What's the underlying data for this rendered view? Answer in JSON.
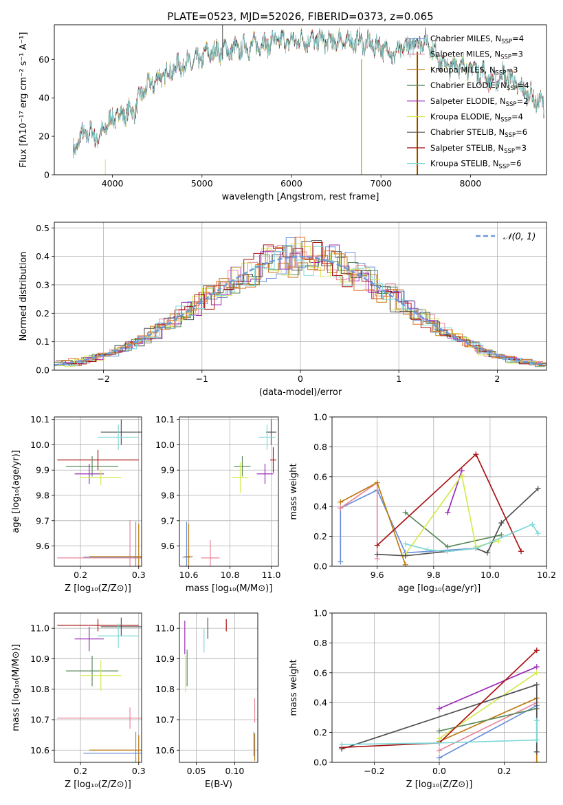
{
  "figure_title": "PLATE=0523, MJD=52026, FIBERID=0373, z=0.065",
  "colors": {
    "Chabrier MILES": "#6a8fd8",
    "Salpeter MILES": "#e8869a",
    "Kroupa MILES": "#c07a10",
    "Chabrier ELODIE": "#5a8a5a",
    "Salpeter ELODIE": "#9a2ab8",
    "Kroupa ELODIE": "#d6e84e",
    "Chabrier STELIB": "#505050",
    "Salpeter STELIB": "#aa1111",
    "Kroupa STELIB": "#7fd8d8",
    "hist_orange": "#e07020",
    "normal_curve": "#6a9ad8"
  },
  "chart_data": [
    {
      "id": "spectrum",
      "type": "line",
      "xlabel": "wavelength [Angstrom, rest frame]",
      "ylabel": "Flux [fλ10⁻¹⁷ erg cm⁻² s⁻¹ A⁻¹]",
      "xlim": [
        3350,
        8850
      ],
      "ylim": [
        0,
        78
      ],
      "xticks": [
        4000,
        5000,
        6000,
        7000,
        8000
      ],
      "yticks": [
        0,
        20,
        40,
        60
      ],
      "legend_position": "right",
      "legend": [
        {
          "name": "Chabrier MILES, N_SSP=4",
          "base": "Chabrier MILES, N",
          "sub": "SSP",
          "tail": "=4"
        },
        {
          "name": "Salpeter MILES, N_SSP=3",
          "base": "Salpeter MILES, N",
          "sub": "SSP",
          "tail": "=3"
        },
        {
          "name": "Kroupa MILES, N_SSP=3",
          "base": "Kroupa MILES, N",
          "sub": "SSP",
          "tail": "=3"
        },
        {
          "name": "Chabrier ELODIE, N_SSP=4",
          "base": "Chabrier ELODIE, N",
          "sub": "SSP",
          "tail": "=4"
        },
        {
          "name": "Salpeter ELODIE, N_SSP=2",
          "base": "Salpeter ELODIE, N",
          "sub": "SSP",
          "tail": "=2"
        },
        {
          "name": "Kroupa ELODIE, N_SSP=4",
          "base": "Kroupa ELODIE, N",
          "sub": "SSP",
          "tail": "=4"
        },
        {
          "name": "Chabrier STELIB, N_SSP=6",
          "base": "Chabrier STELIB, N",
          "sub": "SSP",
          "tail": "=6"
        },
        {
          "name": "Salpeter STELIB, N_SSP=3",
          "base": "Salpeter STELIB, N",
          "sub": "SSP",
          "tail": "=3"
        },
        {
          "name": "Kroupa STELIB, N_SSP=6",
          "base": "Kroupa STELIB, N",
          "sub": "SSP",
          "tail": "=6"
        }
      ],
      "envelope": {
        "x": [
          3560,
          3650,
          3750,
          3850,
          3950,
          4050,
          4150,
          4250,
          4350,
          4450,
          4550,
          4650,
          4750,
          4850,
          4950,
          5050,
          5150,
          5250,
          5350,
          5450,
          5550,
          5650,
          5750,
          5850,
          5950,
          6050,
          6150,
          6250,
          6350,
          6450,
          6550,
          6650,
          6750,
          6850,
          6950,
          7050,
          7150,
          7250,
          7350,
          7450,
          7550,
          7650,
          7750,
          7850,
          7950,
          8050,
          8150,
          8250,
          8350,
          8450,
          8550,
          8650,
          8750,
          8820
        ],
        "y": [
          12,
          20,
          22,
          19,
          27,
          31,
          32,
          34,
          44,
          48,
          51,
          54,
          57,
          58,
          59,
          63,
          64,
          65,
          65,
          66,
          67,
          68,
          68,
          70,
          69,
          70,
          70,
          70,
          70,
          69,
          70,
          69,
          70,
          68,
          67,
          66,
          62,
          66,
          68,
          70,
          68,
          60,
          56,
          58,
          56,
          55,
          53,
          48,
          52,
          50,
          45,
          42,
          38,
          36
        ]
      },
      "vertical_spikes": [
        {
          "series": "Kroupa ELODIE",
          "x": 3920,
          "y0": 0,
          "y1": 8
        },
        {
          "series": "Chabrier STELIB",
          "x": 5230,
          "y0": 60,
          "y1": 78
        },
        {
          "series": "Kroupa MILES",
          "x": 6780,
          "y0": 0,
          "y1": 60
        },
        {
          "series": "Kroupa ELODIE",
          "x": 6785,
          "y0": 0,
          "y1": 60
        },
        {
          "series": "Kroupa MILES",
          "x": 7400,
          "y0": 0,
          "y1": 64
        },
        {
          "series": "Salpeter STELIB",
          "x": 7410,
          "y0": 0,
          "y1": 64
        }
      ]
    },
    {
      "id": "residual-histogram",
      "type": "histogram",
      "xlabel": "(data-model)/error",
      "ylabel": "Normed distribution",
      "xlim": [
        -2.5,
        2.5
      ],
      "ylim": [
        0,
        0.52
      ],
      "xticks": [
        -2,
        -1,
        0,
        1,
        2
      ],
      "yticks": [
        0.0,
        0.1,
        0.2,
        0.3,
        0.4,
        0.5
      ],
      "grid": true,
      "bin_width": 0.1,
      "bin_start": -2.5,
      "legend_position": "top-right",
      "legend_label": "𝒩(0, 1)",
      "normal_curve": {
        "mean": 0,
        "sigma": 1
      },
      "series_names": [
        "Chabrier MILES",
        "Salpeter MILES",
        "Kroupa MILES",
        "Chabrier ELODIE",
        "Salpeter ELODIE",
        "Kroupa ELODIE",
        "Chabrier STELIB",
        "Salpeter STELIB",
        "Kroupa STELIB"
      ]
    },
    {
      "id": "z-age",
      "type": "errorbar",
      "xlabel": "Z [log₁₀(Z/Z⊙)]",
      "ylabel": "age  [log₁₀(age/yr)]",
      "xlim": [
        0.155,
        0.305
      ],
      "ylim": [
        9.52,
        10.11
      ],
      "xticks": [
        0.2,
        0.3
      ],
      "yticks": [
        9.6,
        9.7,
        9.8,
        9.9,
        10.0,
        10.1
      ],
      "grid": true,
      "points": [
        {
          "series": "Chabrier STELIB",
          "x": 0.27,
          "xerr": 0.035,
          "y": 10.05,
          "yerr": 0.05
        },
        {
          "series": "Kroupa STELIB",
          "x": 0.265,
          "xerr": 0.035,
          "y": 10.03,
          "yerr": 0.05
        },
        {
          "series": "Salpeter STELIB",
          "x": 0.23,
          "xerr": 0.07,
          "y": 9.94,
          "yerr": 0.04
        },
        {
          "series": "Chabrier ELODIE",
          "x": 0.22,
          "xerr": 0.045,
          "y": 9.915,
          "yerr": 0.04
        },
        {
          "series": "Salpeter ELODIE",
          "x": 0.215,
          "xerr": 0.025,
          "y": 9.885,
          "yerr": 0.04
        },
        {
          "series": "Kroupa ELODIE",
          "x": 0.235,
          "xerr": 0.035,
          "y": 9.87,
          "yerr": 0.03
        },
        {
          "series": "Salpeter MILES",
          "x": 0.285,
          "xerr": 0.125,
          "y": 9.553,
          "yerr": 0.15
        },
        {
          "series": "Chabrier MILES",
          "x": 0.295,
          "xerr": 0.09,
          "y": 9.556,
          "yerr": 0.14
        },
        {
          "series": "Kroupa MILES",
          "x": 0.3,
          "xerr": 0.085,
          "y": 9.558,
          "yerr": 0.13
        }
      ]
    },
    {
      "id": "mass-age",
      "type": "errorbar",
      "xlabel": "mass [log₁₀(M/M⊙)]",
      "ylabel": "",
      "xlim": [
        10.555,
        11.035
      ],
      "ylim": [
        9.52,
        10.11
      ],
      "xticks": [
        10.6,
        10.8,
        11.0
      ],
      "yticks": [
        9.6,
        9.7,
        9.8,
        9.9,
        10.0,
        10.1
      ],
      "grid": true,
      "points": [
        {
          "series": "Chabrier STELIB",
          "x": 11.0,
          "xerr": 0.025,
          "y": 10.05,
          "yerr": 0.05
        },
        {
          "series": "Kroupa STELIB",
          "x": 10.98,
          "xerr": 0.04,
          "y": 10.03,
          "yerr": 0.05
        },
        {
          "series": "Salpeter STELIB",
          "x": 11.01,
          "xerr": 0.015,
          "y": 9.94,
          "yerr": 0.05
        },
        {
          "series": "Chabrier ELODIE",
          "x": 10.86,
          "xerr": 0.04,
          "y": 9.915,
          "yerr": 0.04
        },
        {
          "series": "Salpeter ELODIE",
          "x": 10.97,
          "xerr": 0.04,
          "y": 9.885,
          "yerr": 0.04
        },
        {
          "series": "Kroupa ELODIE",
          "x": 10.85,
          "xerr": 0.04,
          "y": 9.87,
          "yerr": 0.06
        },
        {
          "series": "Salpeter MILES",
          "x": 10.705,
          "xerr": 0.045,
          "y": 9.553,
          "yerr": 0.07
        },
        {
          "series": "Chabrier MILES",
          "x": 10.59,
          "xerr": 0.02,
          "y": 9.556,
          "yerr": 0.14
        },
        {
          "series": "Kroupa MILES",
          "x": 10.6,
          "xerr": 0.02,
          "y": 9.558,
          "yerr": 0.13
        }
      ]
    },
    {
      "id": "age-massweight",
      "type": "line",
      "xlabel": "age  [log₁₀(age/yr)]",
      "ylabel": "mass weight",
      "xlim": [
        9.44,
        10.2
      ],
      "ylim": [
        0.0,
        1.0
      ],
      "xticks": [
        9.6,
        9.8,
        10.0,
        10.2
      ],
      "yticks": [
        0.0,
        0.2,
        0.4,
        0.6,
        0.8,
        1.0
      ],
      "grid": true,
      "series": [
        {
          "name": "Chabrier MILES",
          "x": [
            9.47,
            9.47,
            9.6,
            9.7,
            9.95
          ],
          "y": [
            0.03,
            0.39,
            0.51,
            0.09,
            0.12
          ]
        },
        {
          "name": "Salpeter MILES",
          "x": [
            9.47,
            9.6,
            9.6
          ],
          "y": [
            0.39,
            0.56,
            0.05
          ]
        },
        {
          "name": "Kroupa MILES",
          "x": [
            9.47,
            9.6,
            9.7
          ],
          "y": [
            0.43,
            0.56,
            0.01
          ]
        },
        {
          "name": "Chabrier ELODIE",
          "x": [
            9.7,
            9.85,
            10.04
          ],
          "y": [
            0.36,
            0.13,
            0.21
          ]
        },
        {
          "name": "Salpeter ELODIE",
          "x": [
            9.85,
            9.9
          ],
          "y": [
            0.36,
            0.64
          ]
        },
        {
          "name": "Kroupa ELODIE",
          "x": [
            9.7,
            9.9,
            9.95,
            10.03
          ],
          "y": [
            0.08,
            0.61,
            0.13,
            0.17
          ]
        },
        {
          "name": "Chabrier STELIB",
          "x": [
            9.6,
            9.7,
            9.95,
            9.99,
            10.04,
            10.17
          ],
          "y": [
            0.08,
            0.07,
            0.12,
            0.09,
            0.29,
            0.52
          ]
        },
        {
          "name": "Salpeter STELIB",
          "x": [
            9.6,
            9.95,
            10.11
          ],
          "y": [
            0.14,
            0.75,
            0.1
          ]
        },
        {
          "name": "Kroupa STELIB",
          "x": [
            9.7,
            9.78,
            9.85,
            9.95,
            10.15,
            10.17
          ],
          "y": [
            0.15,
            0.11,
            0.1,
            0.12,
            0.28,
            0.22
          ]
        }
      ]
    },
    {
      "id": "z-mass",
      "type": "errorbar",
      "xlabel": "Z [log₁₀(Z/Z⊙)]",
      "ylabel": "mass [log₁₀(M/M⊙)]",
      "xlim": [
        0.155,
        0.305
      ],
      "ylim": [
        10.56,
        11.05
      ],
      "xticks": [
        0.2,
        0.3
      ],
      "yticks": [
        10.6,
        10.7,
        10.8,
        10.9,
        11.0
      ],
      "grid": true,
      "points": [
        {
          "series": "Salpeter STELIB",
          "x": 0.23,
          "xerr": 0.07,
          "y": 11.01,
          "yerr": 0.02
        },
        {
          "series": "Chabrier STELIB",
          "x": 0.27,
          "xerr": 0.035,
          "y": 11.005,
          "yerr": 0.03
        },
        {
          "series": "Kroupa STELIB",
          "x": 0.265,
          "xerr": 0.035,
          "y": 10.975,
          "yerr": 0.04
        },
        {
          "series": "Salpeter ELODIE",
          "x": 0.215,
          "xerr": 0.025,
          "y": 10.965,
          "yerr": 0.04
        },
        {
          "series": "Chabrier ELODIE",
          "x": 0.22,
          "xerr": 0.045,
          "y": 10.86,
          "yerr": 0.05
        },
        {
          "series": "Kroupa ELODIE",
          "x": 0.235,
          "xerr": 0.035,
          "y": 10.845,
          "yerr": 0.05
        },
        {
          "series": "Salpeter MILES",
          "x": 0.285,
          "xerr": 0.125,
          "y": 10.705,
          "yerr": 0.035
        },
        {
          "series": "Kroupa MILES",
          "x": 0.3,
          "xerr": 0.085,
          "y": 10.6,
          "yerr": 0.05
        },
        {
          "series": "Chabrier MILES",
          "x": 0.295,
          "xerr": 0.09,
          "y": 10.59,
          "yerr": 0.07
        }
      ]
    },
    {
      "id": "ebv-mass",
      "type": "errorbar",
      "xlabel": "E(B-V)",
      "ylabel": "",
      "xlim": [
        0.028,
        0.13
      ],
      "ylim": [
        10.56,
        11.05
      ],
      "xticks": [
        0.05,
        0.1
      ],
      "yticks": [
        10.6,
        10.7,
        10.8,
        10.9,
        11.0
      ],
      "grid": true,
      "points": [
        {
          "series": "Salpeter STELIB",
          "x": 0.089,
          "xerr": 0,
          "y": 11.01,
          "yerr": 0.02
        },
        {
          "series": "Chabrier STELIB",
          "x": 0.065,
          "xerr": 0,
          "y": 11.0,
          "yerr": 0.035
        },
        {
          "series": "Kroupa STELIB",
          "x": 0.06,
          "xerr": 0,
          "y": 10.96,
          "yerr": 0.04
        },
        {
          "series": "Salpeter ELODIE",
          "x": 0.035,
          "xerr": 0,
          "y": 10.97,
          "yerr": 0.055
        },
        {
          "series": "Chabrier ELODIE",
          "x": 0.038,
          "xerr": 0,
          "y": 10.87,
          "yerr": 0.06
        },
        {
          "series": "Kroupa ELODIE",
          "x": 0.036,
          "xerr": 0,
          "y": 10.85,
          "yerr": 0.06
        },
        {
          "series": "Salpeter MILES",
          "x": 0.126,
          "xerr": 0,
          "y": 10.73,
          "yerr": 0.04
        },
        {
          "series": "Chabrier MILES",
          "x": 0.125,
          "xerr": 0,
          "y": 10.62,
          "yerr": 0.04
        },
        {
          "series": "Kroupa MILES",
          "x": 0.126,
          "xerr": 0,
          "y": 10.61,
          "yerr": 0.045
        }
      ]
    },
    {
      "id": "z-massweight",
      "type": "line",
      "xlabel": "Z [log₁₀(Z/Z⊙)]",
      "ylabel": "mass weight",
      "xlim": [
        -0.33,
        0.33
      ],
      "ylim": [
        0.0,
        1.0
      ],
      "xticks": [
        -0.2,
        0.0,
        0.2
      ],
      "yticks": [
        0.0,
        0.2,
        0.4,
        0.6,
        0.8,
        1.0
      ],
      "grid": true,
      "series": [
        {
          "name": "Chabrier MILES",
          "x": [
            0.0,
            0.3
          ],
          "y": [
            0.03,
            0.38
          ]
        },
        {
          "name": "Salpeter MILES",
          "x": [
            0.0,
            0.3
          ],
          "y": [
            0.08,
            0.4
          ]
        },
        {
          "name": "Kroupa MILES",
          "x": [
            0.0,
            0.3,
            0.3
          ],
          "y": [
            0.14,
            0.43,
            0.0
          ]
        },
        {
          "name": "Chabrier ELODIE",
          "x": [
            0.0,
            0.3
          ],
          "y": [
            0.21,
            0.36
          ]
        },
        {
          "name": "Salpeter ELODIE",
          "x": [
            0.0,
            0.3
          ],
          "y": [
            0.36,
            0.64
          ]
        },
        {
          "name": "Kroupa ELODIE",
          "x": [
            0.0,
            0.3
          ],
          "y": [
            0.16,
            0.6
          ]
        },
        {
          "name": "Chabrier STELIB",
          "x": [
            -0.3,
            0.3,
            0.3
          ],
          "y": [
            0.09,
            0.52,
            0.07
          ]
        },
        {
          "name": "Salpeter STELIB",
          "x": [
            -0.3,
            0.0,
            0.3
          ],
          "y": [
            0.1,
            0.13,
            0.75
          ]
        },
        {
          "name": "Kroupa STELIB",
          "x": [
            -0.3,
            0.0,
            0.3,
            0.3
          ],
          "y": [
            0.12,
            0.13,
            0.15,
            0.28
          ]
        }
      ]
    }
  ]
}
